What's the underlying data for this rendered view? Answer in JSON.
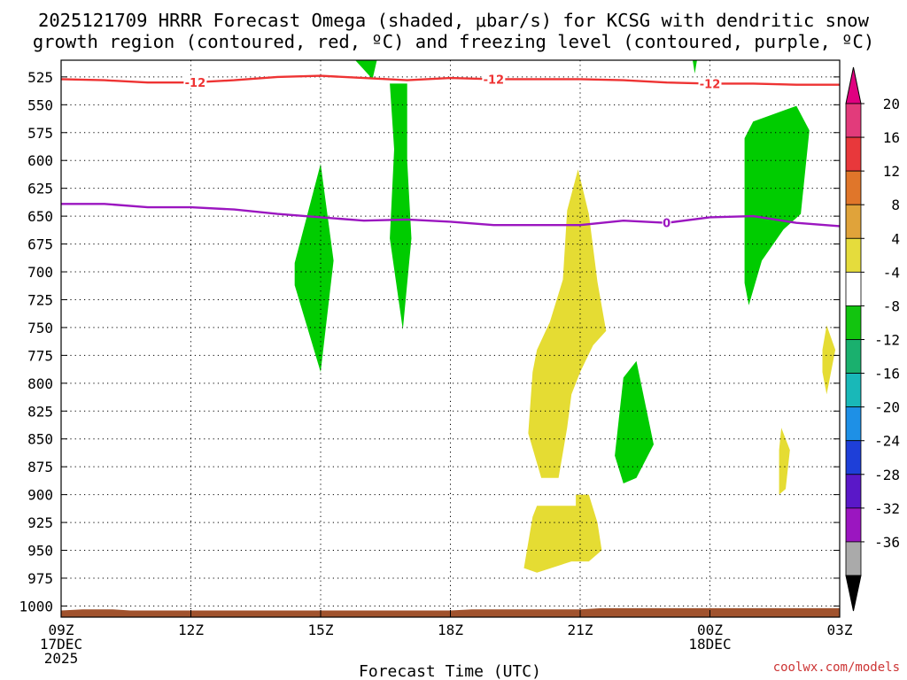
{
  "chart_data": {
    "type": "time-pressure cross section",
    "title_line1": "2025121709 HRRR Forecast Omega (shaded, μbar/s) for KCSG with dendritic snow",
    "title_line2": "growth region (contoured, red, ºC) and freezing level (contoured, purple, ºC)",
    "xlabel": "Forecast Time (UTC)",
    "credit": "coolwx.com/models",
    "x_range_hours": [
      0,
      18
    ],
    "y_range_hpa": [
      1010,
      510
    ],
    "y_ticks": [
      "525",
      "550",
      "575",
      "600",
      "625",
      "650",
      "675",
      "700",
      "725",
      "750",
      "775",
      "800",
      "825",
      "850",
      "875",
      "900",
      "925",
      "950",
      "975",
      "1000"
    ],
    "x_ticks": [
      {
        "h": 0,
        "lines": [
          "09Z",
          "17DEC",
          "2025"
        ]
      },
      {
        "h": 3,
        "lines": [
          "12Z"
        ]
      },
      {
        "h": 6,
        "lines": [
          "15Z"
        ]
      },
      {
        "h": 9,
        "lines": [
          "18Z"
        ]
      },
      {
        "h": 12,
        "lines": [
          "21Z"
        ]
      },
      {
        "h": 15,
        "lines": [
          "00Z",
          "18DEC"
        ]
      },
      {
        "h": 18,
        "lines": [
          "03Z"
        ]
      }
    ],
    "colorbar": {
      "labels": [
        "20",
        "16",
        "12",
        "8",
        "4",
        "-4",
        "-8",
        "-12",
        "-16",
        "-20",
        "-24",
        "-28",
        "-32",
        "-36"
      ],
      "colors": [
        "#e23b7b",
        "#e8383b",
        "#e0762a",
        "#e0a33a",
        "#e5dc3c",
        "#ffffff",
        "#12c40f",
        "#1ab06e",
        "#19b8b8",
        "#1e90e6",
        "#1e3fd8",
        "#5a18c8",
        "#9b16c0",
        "#aaaaaa"
      ],
      "over_color": "#e00080",
      "under_color": "#000000"
    },
    "fill_colors": {
      "green": "#00cc00",
      "yellow": "#e5dc33",
      "terrain": "#a0522d"
    },
    "contours": [
      {
        "name": "-12",
        "color": "#ee3333",
        "label": "-12",
        "points": [
          [
            0,
            527
          ],
          [
            1,
            528
          ],
          [
            2,
            530
          ],
          [
            3,
            530
          ],
          [
            4,
            528
          ],
          [
            5,
            525
          ],
          [
            6,
            524
          ],
          [
            7,
            526
          ],
          [
            8,
            528
          ],
          [
            9,
            526
          ],
          [
            10,
            527
          ],
          [
            11,
            527
          ],
          [
            12,
            527
          ],
          [
            13,
            528
          ],
          [
            14,
            530
          ],
          [
            15,
            531
          ],
          [
            16,
            531
          ],
          [
            17,
            532
          ],
          [
            18,
            532
          ]
        ],
        "label_hours": [
          3.1,
          10.0,
          15.0
        ]
      },
      {
        "name": "0",
        "color": "#9b16c0",
        "label": "0",
        "points": [
          [
            0,
            639
          ],
          [
            1,
            639
          ],
          [
            2,
            642
          ],
          [
            3,
            642
          ],
          [
            4,
            644
          ],
          [
            5,
            648
          ],
          [
            6,
            651
          ],
          [
            7,
            654
          ],
          [
            8,
            653
          ],
          [
            9,
            655
          ],
          [
            10,
            658
          ],
          [
            11,
            658
          ],
          [
            12,
            658
          ],
          [
            13,
            654
          ],
          [
            14,
            656
          ],
          [
            15,
            651
          ],
          [
            16,
            650
          ],
          [
            17,
            656
          ],
          [
            18,
            659
          ]
        ],
        "label_hours": [
          14.0
        ]
      }
    ],
    "regions": [
      {
        "name": "upward-motion-a",
        "fill": "green",
        "pts": [
          [
            5.4,
            692
          ],
          [
            6.0,
            603
          ],
          [
            6.3,
            690
          ],
          [
            6.0,
            790
          ],
          [
            5.4,
            712
          ]
        ]
      },
      {
        "name": "upward-motion-b",
        "fill": "green",
        "pts": [
          [
            6.8,
            510
          ],
          [
            7.3,
            510
          ],
          [
            7.2,
            527
          ]
        ]
      },
      {
        "name": "upward-motion-c",
        "fill": "green",
        "pts": [
          [
            7.6,
            531
          ],
          [
            8.0,
            531
          ],
          [
            8.0,
            600
          ],
          [
            8.1,
            670
          ],
          [
            7.9,
            752
          ],
          [
            7.6,
            670
          ],
          [
            7.7,
            590
          ]
        ]
      },
      {
        "name": "upward-motion-d",
        "fill": "green",
        "pts": [
          [
            12.8,
            865
          ],
          [
            13.0,
            795
          ],
          [
            13.3,
            780
          ],
          [
            13.7,
            855
          ],
          [
            13.3,
            885
          ],
          [
            13.0,
            890
          ]
        ]
      },
      {
        "name": "upward-motion-e",
        "fill": "green",
        "pts": [
          [
            14.6,
            510
          ],
          [
            14.7,
            510
          ],
          [
            14.65,
            522
          ]
        ]
      },
      {
        "name": "upward-motion-f",
        "fill": "green",
        "pts": [
          [
            15.8,
            580
          ],
          [
            16.0,
            565
          ],
          [
            17.0,
            551
          ],
          [
            17.3,
            573
          ],
          [
            17.1,
            648
          ],
          [
            16.7,
            662
          ],
          [
            16.2,
            690
          ],
          [
            15.9,
            730
          ],
          [
            15.8,
            710
          ],
          [
            15.8,
            640
          ]
        ]
      },
      {
        "name": "downward-motion-a",
        "fill": "yellow",
        "pts": [
          [
            10.8,
            845
          ],
          [
            10.9,
            790
          ],
          [
            11.0,
            770
          ],
          [
            11.3,
            745
          ],
          [
            11.6,
            707
          ],
          [
            11.7,
            645
          ],
          [
            11.95,
            608
          ],
          [
            12.2,
            648
          ],
          [
            12.4,
            709
          ],
          [
            12.6,
            753
          ],
          [
            12.3,
            766
          ],
          [
            12.0,
            790
          ],
          [
            11.8,
            810
          ],
          [
            11.7,
            840
          ],
          [
            11.5,
            885
          ],
          [
            11.1,
            885
          ]
        ]
      },
      {
        "name": "downward-motion-b",
        "fill": "yellow",
        "pts": [
          [
            10.9,
            920
          ],
          [
            11.0,
            910
          ],
          [
            11.0,
            910
          ],
          [
            11.9,
            910
          ],
          [
            11.9,
            900
          ],
          [
            12.2,
            900
          ],
          [
            12.4,
            925
          ],
          [
            12.5,
            950
          ],
          [
            12.2,
            960
          ],
          [
            11.8,
            960
          ],
          [
            11.0,
            970
          ],
          [
            10.7,
            966
          ]
        ]
      },
      {
        "name": "downward-motion-c",
        "fill": "yellow",
        "pts": [
          [
            17.6,
            770
          ],
          [
            17.7,
            748
          ],
          [
            17.9,
            770
          ],
          [
            17.7,
            810
          ],
          [
            17.6,
            790
          ]
        ]
      },
      {
        "name": "downward-motion-d",
        "fill": "yellow",
        "pts": [
          [
            16.6,
            860
          ],
          [
            16.65,
            840
          ],
          [
            16.85,
            860
          ],
          [
            16.75,
            895
          ],
          [
            16.6,
            900
          ]
        ]
      }
    ],
    "terrain": [
      [
        0,
        1004
      ],
      [
        0.5,
        1003
      ],
      [
        1.2,
        1003
      ],
      [
        1.6,
        1004
      ],
      [
        9,
        1004
      ],
      [
        9.5,
        1003
      ],
      [
        12,
        1003
      ],
      [
        12.5,
        1002
      ],
      [
        18,
        1002
      ]
    ]
  }
}
